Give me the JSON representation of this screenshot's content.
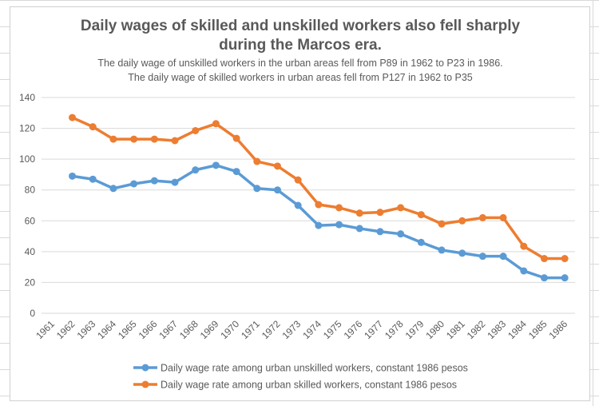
{
  "chart_data": {
    "type": "line",
    "title": [
      "Daily wages of skilled and unskilled workers also fell sharply",
      "during the Marcos era."
    ],
    "subtitle": [
      "The daily wage of unskilled workers in the urban areas fell from P89 in 1962 to P23 in 1986.",
      "The daily wage of skilled workers in urban areas fell from P127 in 1962 to P35"
    ],
    "xlabel": "",
    "ylabel": "",
    "categories": [
      "1961",
      "1962",
      "1963",
      "1964",
      "1965",
      "1966",
      "1967",
      "1968",
      "1969",
      "1970",
      "1971",
      "1972",
      "1973",
      "1974",
      "1975",
      "1976",
      "1977",
      "1978",
      "1979",
      "1980",
      "1981",
      "1982",
      "1983",
      "1984",
      "1985",
      "1986"
    ],
    "ylim": [
      0,
      140
    ],
    "yticks": [
      "0",
      "20",
      "40",
      "60",
      "80",
      "100",
      "120",
      "140"
    ],
    "grid": true,
    "legend_position": "bottom",
    "series": [
      {
        "name": "Daily wage rate among urban unskilled workers, constant 1986 pesos",
        "color": "#5B9BD5",
        "values": [
          null,
          89,
          87,
          81,
          84,
          86,
          85,
          93,
          96,
          92,
          81,
          80,
          70,
          57,
          57.5,
          55,
          53,
          51.5,
          46,
          41,
          39,
          37,
          37,
          27.5,
          23,
          23
        ]
      },
      {
        "name": "Daily wage rate among urban skilled workers, constant 1986 pesos",
        "color": "#ED7D31",
        "values": [
          null,
          127,
          121,
          113,
          113,
          113,
          112,
          118.5,
          123,
          113.5,
          98.5,
          95.5,
          86.5,
          70.5,
          68.5,
          65,
          65.5,
          68.5,
          64,
          58,
          60,
          62,
          62,
          43.5,
          35.5,
          35.5
        ]
      }
    ]
  }
}
